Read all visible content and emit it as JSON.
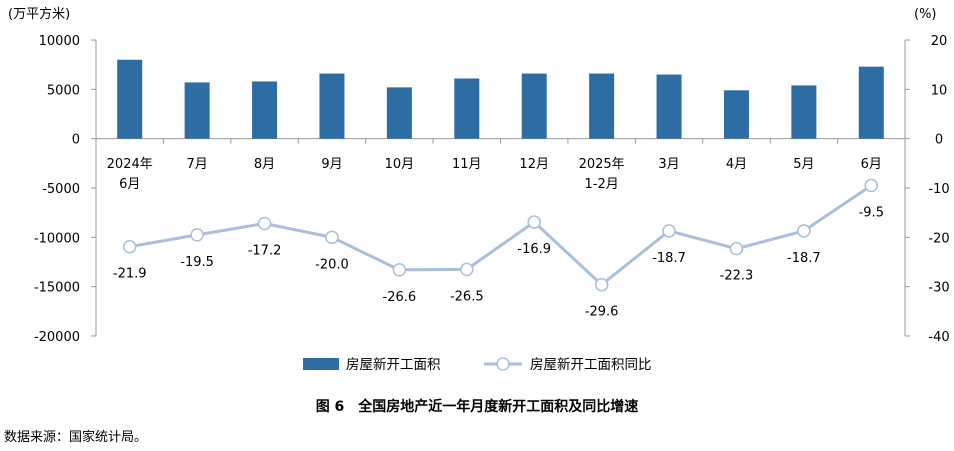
{
  "chart_data": {
    "type": "bar+line",
    "title": "图6　全国房地产近一年月度新开工面积及同比增速",
    "categories": [
      [
        "2024年",
        "6月"
      ],
      [
        "7月"
      ],
      [
        "8月"
      ],
      [
        "9月"
      ],
      [
        "10月"
      ],
      [
        "11月"
      ],
      [
        "12月"
      ],
      [
        "2025年",
        "1-2月"
      ],
      [
        "3月"
      ],
      [
        "4月"
      ],
      [
        "5月"
      ],
      [
        "6月"
      ]
    ],
    "left_axis": {
      "unit": "(万平方米)",
      "ylim": [
        -20000,
        10000
      ],
      "ticks": [
        10000,
        5000,
        0,
        -5000,
        -10000,
        -15000,
        -20000
      ]
    },
    "right_axis": {
      "unit": "(%)",
      "ylim": [
        -40,
        20
      ],
      "ticks": [
        20,
        10,
        0,
        -10,
        -20,
        -30,
        -40
      ]
    },
    "series": [
      {
        "name": "房屋新开工面积",
        "type": "bar",
        "axis": "left",
        "color": "#2e6ca4",
        "values": [
          8000,
          5700,
          5800,
          6600,
          5200,
          6100,
          6600,
          6600,
          6500,
          4900,
          5400,
          7300
        ]
      },
      {
        "name": "房屋新开工面积同比",
        "type": "line",
        "axis": "right",
        "color": "#a9bfdb",
        "values": [
          -21.9,
          -19.5,
          -17.2,
          -20.0,
          -26.6,
          -26.5,
          -16.9,
          -29.6,
          -18.7,
          -22.3,
          -18.7,
          -9.5
        ],
        "labels": [
          "-21.9",
          "-19.5",
          "-17.2",
          "-20.0",
          "-26.6",
          "-26.5",
          "-16.9",
          "-29.6",
          "-18.7",
          "-22.3",
          "-18.7",
          "-9.5"
        ]
      }
    ],
    "legend": "bottom-center",
    "grid": false
  },
  "figure": {
    "caption": "图 6　全国房地产近一年月度新开工面积及同比增速",
    "source": "数据来源：国家统计局。"
  }
}
